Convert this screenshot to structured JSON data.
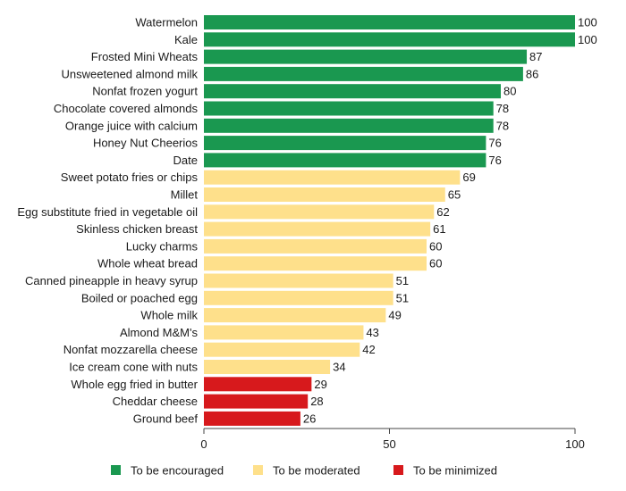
{
  "chart_data": {
    "type": "bar",
    "orientation": "horizontal",
    "title": "",
    "xlabel": "",
    "ylabel": "",
    "xlim": [
      0,
      100
    ],
    "x_ticks": [
      0,
      50,
      100
    ],
    "grid": false,
    "legend_position": "bottom",
    "categories": [
      "Watermelon",
      "Kale",
      "Frosted Mini Wheats",
      "Unsweetened almond milk",
      "Nonfat frozen yogurt",
      "Chocolate covered almonds",
      "Orange juice with calcium",
      "Honey Nut Cheerios",
      "Date",
      "Sweet potato fries or chips",
      "Millet",
      "Egg substitute fried in vegetable oil",
      "Skinless chicken breast",
      "Lucky charms",
      "Whole wheat bread",
      "Canned pineapple in heavy syrup",
      "Boiled or poached egg",
      "Whole milk",
      "Almond M&M's",
      "Nonfat mozzarella cheese",
      "Ice cream cone with nuts",
      "Whole egg fried in butter",
      "Cheddar cheese",
      "Ground beef"
    ],
    "values": [
      100,
      100,
      87,
      86,
      80,
      78,
      78,
      76,
      76,
      69,
      65,
      62,
      61,
      60,
      60,
      51,
      51,
      49,
      43,
      42,
      34,
      29,
      28,
      26
    ],
    "groups": [
      0,
      0,
      0,
      0,
      0,
      0,
      0,
      0,
      0,
      1,
      1,
      1,
      1,
      1,
      1,
      1,
      1,
      1,
      1,
      1,
      1,
      2,
      2,
      2
    ],
    "legend": [
      {
        "name": "To be encouraged",
        "color": "#1a9850"
      },
      {
        "name": "To be moderated",
        "color": "#fee08b"
      },
      {
        "name": "To be minimized",
        "color": "#d7191c"
      }
    ]
  }
}
